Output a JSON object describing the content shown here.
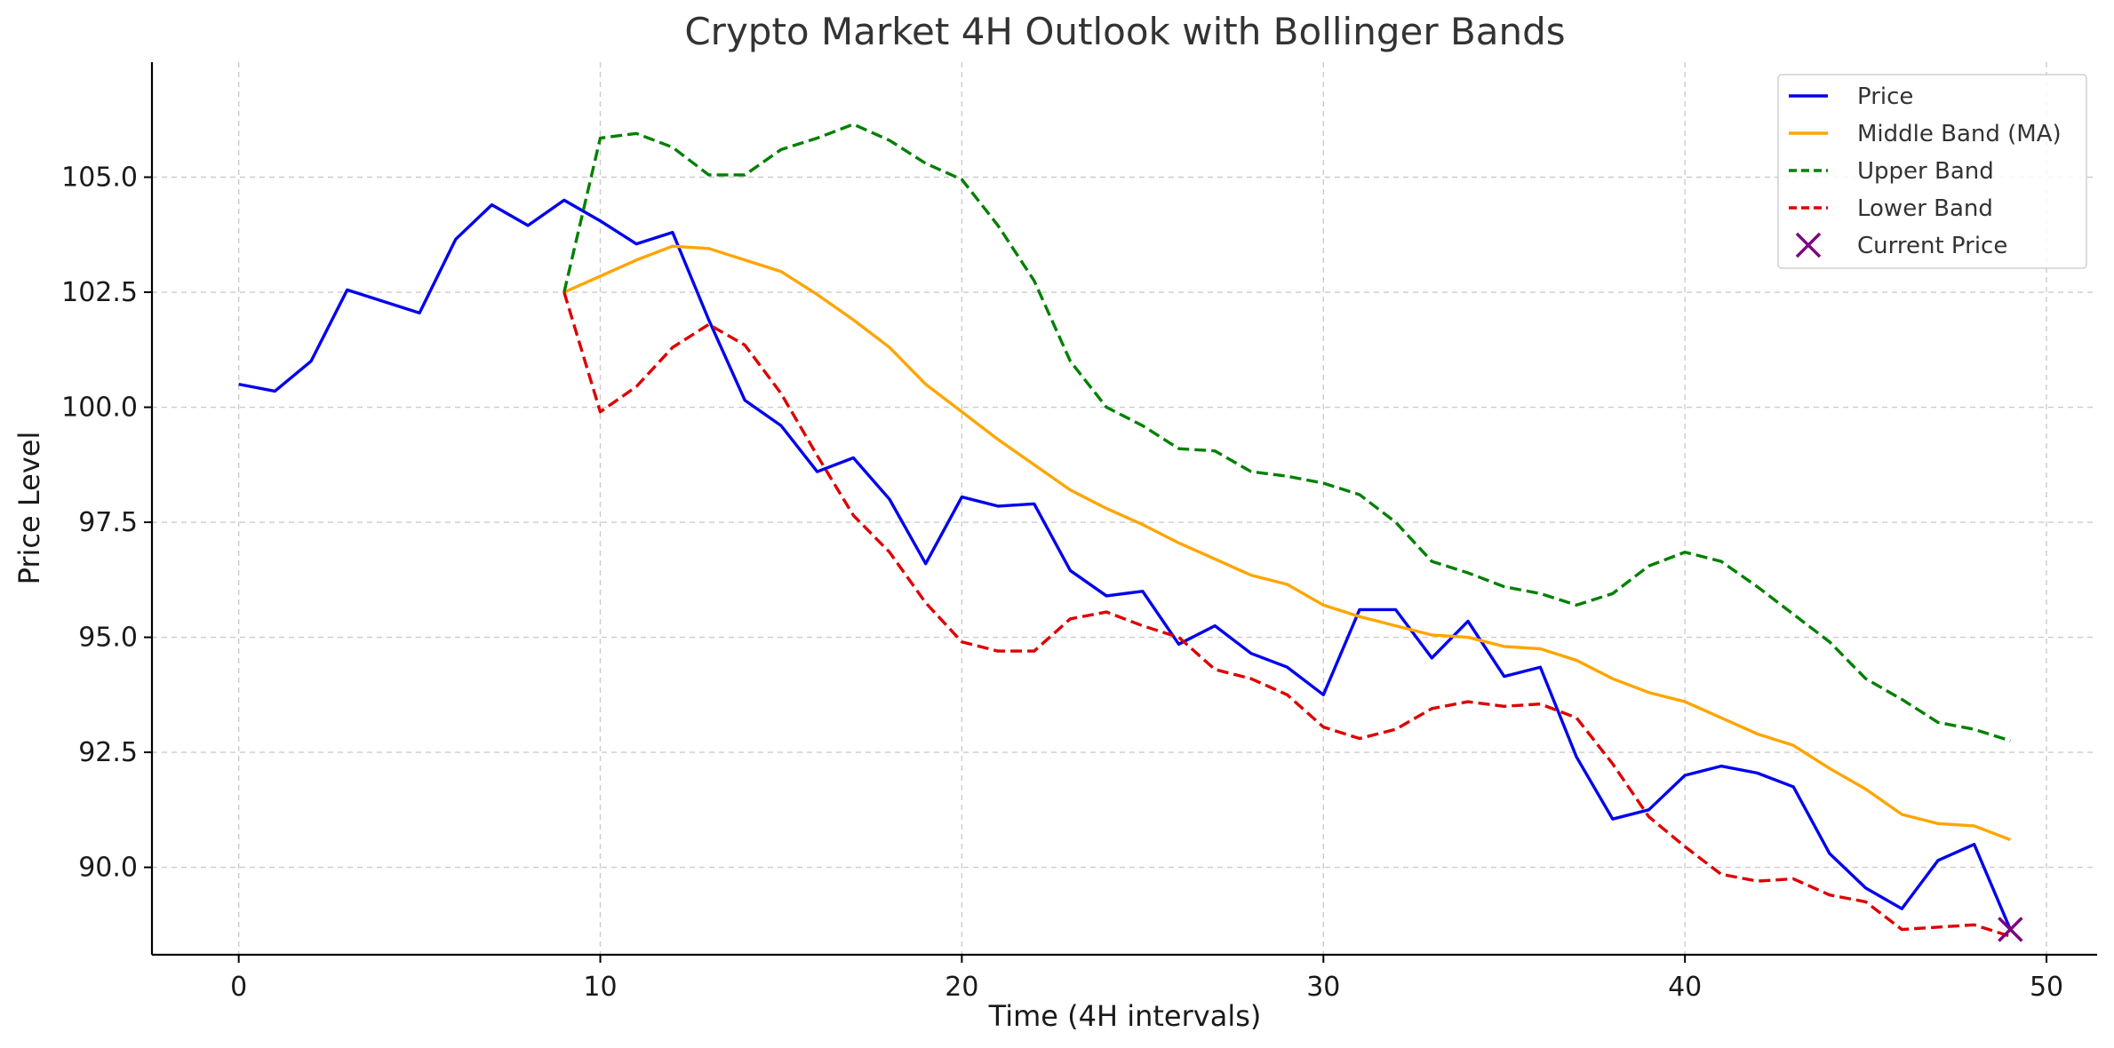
{
  "chart_data": {
    "type": "line",
    "title": "Crypto Market 4H Outlook with Bollinger Bands",
    "xlabel": "Time (4H intervals)",
    "ylabel": "Price Level",
    "xlim": [
      -2.4,
      51.4
    ],
    "ylim": [
      88.1,
      107.5
    ],
    "grid": true,
    "legend_position": "top-right",
    "x_ticks": [
      0,
      10,
      20,
      30,
      40,
      50
    ],
    "y_ticks": [
      90.0,
      92.5,
      95.0,
      97.5,
      100.0,
      102.5,
      105.0
    ],
    "x_tick_labels": [
      "0",
      "10",
      "20",
      "30",
      "40",
      "50"
    ],
    "y_tick_labels": [
      "90.0",
      "92.5",
      "95.0",
      "97.5",
      "100.0",
      "102.5",
      "105.0"
    ],
    "series": [
      {
        "name": "Price",
        "color": "#0000ee",
        "style": "solid",
        "x_start": 0,
        "values": [
          100.5,
          100.35,
          101.0,
          102.55,
          102.3,
          102.05,
          103.65,
          104.4,
          103.95,
          104.5,
          104.05,
          103.55,
          103.8,
          101.9,
          100.15,
          99.6,
          98.6,
          98.9,
          98.0,
          96.6,
          98.05,
          97.85,
          97.9,
          96.45,
          95.9,
          96.0,
          94.85,
          95.25,
          94.65,
          94.35,
          93.75,
          95.6,
          95.6,
          94.55,
          95.35,
          94.15,
          94.35,
          92.4,
          91.05,
          91.25,
          92.0,
          92.2,
          92.05,
          91.75,
          90.3,
          89.55,
          89.1,
          90.15,
          90.5,
          88.65
        ]
      },
      {
        "name": "Middle Band (MA)",
        "color": "#ffa500",
        "style": "solid",
        "x_start": 9,
        "values": [
          102.5,
          102.85,
          103.2,
          103.5,
          103.45,
          103.2,
          102.95,
          102.45,
          101.9,
          101.3,
          100.5,
          99.9,
          99.3,
          98.75,
          98.2,
          97.8,
          97.45,
          97.05,
          96.7,
          96.35,
          96.15,
          95.7,
          95.45,
          95.25,
          95.05,
          95.0,
          94.8,
          94.75,
          94.5,
          94.1,
          93.8,
          93.6,
          93.25,
          92.9,
          92.65,
          92.15,
          91.7,
          91.15,
          90.95,
          90.9,
          90.6
        ]
      },
      {
        "name": "Upper Band",
        "color": "#008000",
        "style": "dashed",
        "x_start": 9,
        "values": [
          102.5,
          105.85,
          105.95,
          105.65,
          105.05,
          105.05,
          105.6,
          105.85,
          106.15,
          105.8,
          105.3,
          104.95,
          103.95,
          102.75,
          101.0,
          100.0,
          99.6,
          99.1,
          99.05,
          98.6,
          98.5,
          98.35,
          98.1,
          97.5,
          96.65,
          96.4,
          96.1,
          95.95,
          95.7,
          95.95,
          96.55,
          96.85,
          96.65,
          96.1,
          95.5,
          94.9,
          94.1,
          93.65,
          93.15,
          93.0,
          92.75
        ]
      },
      {
        "name": "Lower Band",
        "color": "#dd0000",
        "style": "dashed",
        "x_start": 9,
        "values": [
          102.5,
          99.9,
          100.45,
          101.3,
          101.8,
          101.35,
          100.3,
          98.95,
          97.65,
          96.85,
          95.75,
          94.9,
          94.7,
          94.7,
          95.4,
          95.55,
          95.25,
          95.0,
          94.3,
          94.1,
          93.75,
          93.05,
          92.8,
          93.0,
          93.45,
          93.6,
          93.5,
          93.55,
          93.25,
          92.25,
          91.1,
          90.45,
          89.85,
          89.7,
          89.75,
          89.4,
          89.25,
          88.65,
          88.7,
          88.75,
          88.5
        ]
      }
    ],
    "current_price": {
      "name": "Current Price",
      "x": 49,
      "y": 88.65,
      "color": "#800080",
      "marker": "x"
    }
  }
}
